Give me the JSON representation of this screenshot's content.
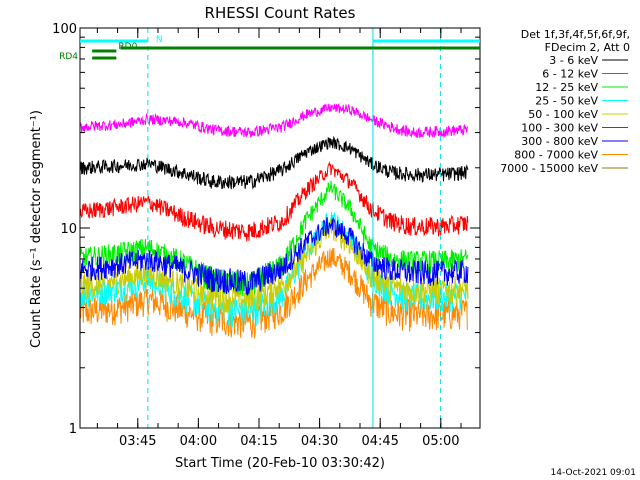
{
  "chart_data": {
    "type": "line",
    "title": "RHESSI Count Rates",
    "xlabel": "Start Time (20-Feb-10 03:30:42)",
    "ylabel": "Count Rate (s⁻¹ detector segment⁻¹)",
    "yscale": "log",
    "ylim": [
      1,
      100
    ],
    "y_ticks": [
      {
        "v": 1,
        "label": "1"
      },
      {
        "v": 10,
        "label": "10"
      },
      {
        "v": 100,
        "label": "100"
      }
    ],
    "xlim_minutes": [
      0,
      99
    ],
    "x_ticks": [
      {
        "m": 14.3,
        "label": "03:45"
      },
      {
        "m": 29.3,
        "label": "04:00"
      },
      {
        "m": 44.3,
        "label": "04:15"
      },
      {
        "m": 59.3,
        "label": "04:30"
      },
      {
        "m": 74.3,
        "label": "04:45"
      },
      {
        "m": 89.3,
        "label": "05:00"
      }
    ],
    "grid": false,
    "legend_position": "right",
    "legend_header": [
      "Det 1f,3f,4f,5f,6f,9f,",
      "FDecim 2, Att 0"
    ],
    "series": [
      {
        "name": "3 - 6 keV",
        "color": "#000000",
        "x": [
          0,
          10,
          17,
          25,
          33,
          42,
          50,
          56,
          62,
          67,
          72,
          77,
          82,
          90,
          96
        ],
        "y": [
          20,
          20.5,
          21,
          19,
          17,
          17,
          19.5,
          24,
          27,
          25,
          21,
          19,
          18.5,
          18.5,
          19
        ]
      },
      {
        "name": "6 - 12 keV",
        "color": "#ff00ff",
        "x": [
          0,
          10,
          17,
          25,
          33,
          42,
          50,
          56,
          62,
          67,
          72,
          77,
          82,
          90,
          96
        ],
        "y": [
          32,
          33,
          35,
          34,
          31,
          30,
          32,
          37,
          40,
          39,
          35,
          32,
          30,
          30.5,
          31
        ]
      },
      {
        "name": "12 - 25 keV",
        "color": "#00ee00",
        "x": [
          0,
          10,
          17,
          25,
          33,
          42,
          50,
          56,
          62,
          67,
          72,
          77,
          82,
          90,
          96
        ],
        "y": [
          7,
          7.5,
          8,
          6.8,
          5.5,
          5.2,
          6.5,
          11,
          16,
          12.5,
          8,
          7,
          6.8,
          6.8,
          7
        ]
      },
      {
        "name": "25 - 50 keV",
        "color": "#00ffff",
        "x": [
          0,
          10,
          17,
          25,
          33,
          42,
          50,
          56,
          62,
          67,
          72,
          77,
          82,
          90,
          96
        ],
        "y": [
          4.7,
          5,
          5.5,
          4.6,
          4,
          3.8,
          4.6,
          7.5,
          11.5,
          9,
          5.8,
          4.8,
          4.5,
          4.5,
          4.7
        ]
      },
      {
        "name": "50 - 100 keV",
        "color": "#cccc00",
        "x": [
          0,
          10,
          17,
          25,
          33,
          42,
          50,
          56,
          62,
          67,
          72,
          77,
          82,
          90,
          96
        ],
        "y": [
          5.1,
          5.5,
          6,
          5.2,
          4.6,
          4.4,
          5.2,
          7.2,
          10,
          8.2,
          5.8,
          5.1,
          4.9,
          4.9,
          5
        ]
      },
      {
        "name": "100 - 300 keV",
        "color": "#ff0000",
        "x": [
          0,
          10,
          17,
          25,
          33,
          42,
          50,
          56,
          62,
          67,
          72,
          77,
          82,
          90,
          96
        ],
        "y": [
          12,
          12.8,
          13.5,
          11.5,
          10,
          9.6,
          10.8,
          15.5,
          20,
          17,
          12.5,
          10.8,
          10.2,
          10.2,
          10.6
        ]
      },
      {
        "name": "300 - 800 keV",
        "color": "#0000ff",
        "x": [
          0,
          10,
          17,
          25,
          33,
          42,
          50,
          56,
          62,
          67,
          72,
          77,
          82,
          90,
          96
        ],
        "y": [
          6.2,
          6.6,
          7,
          6.3,
          5.6,
          5.3,
          6.3,
          8.5,
          10.5,
          9,
          6.8,
          6.2,
          6,
          6,
          6.1
        ]
      },
      {
        "name": "800 - 7000 keV",
        "color": "#ff8800",
        "x": [
          0,
          10,
          17,
          25,
          33,
          42,
          50,
          56,
          62,
          67,
          72,
          77,
          82,
          90,
          96
        ],
        "y": [
          3.8,
          4,
          4.4,
          3.9,
          3.5,
          3.4,
          3.9,
          5.5,
          7.3,
          6,
          4.3,
          3.8,
          3.7,
          3.7,
          3.8
        ]
      },
      {
        "name": "7000 - 15000 keV",
        "color": "#808000",
        "x": [],
        "y": []
      }
    ],
    "state_bars": [
      {
        "label": "N",
        "color": "#00ffff",
        "segments": [
          [
            0,
            16.8
          ],
          [
            72.5,
            99
          ]
        ]
      },
      {
        "label": "RD0",
        "color": "#008000",
        "segments": [
          [
            10,
            99
          ]
        ]
      },
      {
        "label": "",
        "color": "#008000",
        "segments": [
          [
            3,
            9
          ]
        ]
      },
      {
        "label": "RD4",
        "color": "#008000",
        "segments": [
          [
            3,
            9
          ]
        ]
      }
    ],
    "vertical_lines": [
      {
        "x": 0,
        "style": "solid"
      },
      {
        "x": 16.8,
        "style": "dashed"
      },
      {
        "x": 72.5,
        "style": "solid"
      },
      {
        "x": 89.2,
        "style": "dashed"
      }
    ],
    "vertical_line_color": "#00e0e0"
  },
  "footer": {
    "timestamp": "14-Oct-2021 09:01"
  }
}
